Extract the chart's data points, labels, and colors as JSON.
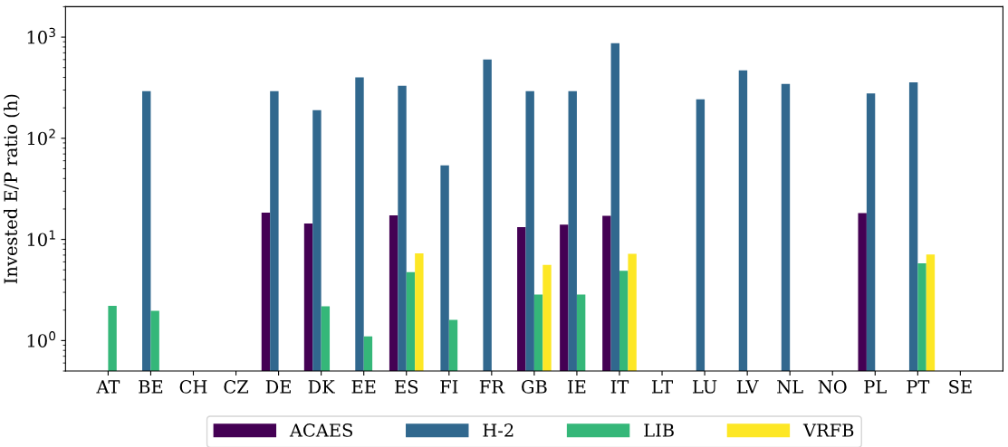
{
  "chart_data": {
    "type": "bar",
    "ylabel": "Invested E/P ratio (h)",
    "log": true,
    "categories": [
      "AT",
      "BE",
      "CH",
      "CZ",
      "DE",
      "DK",
      "EE",
      "ES",
      "FI",
      "FR",
      "GB",
      "IE",
      "IT",
      "LT",
      "LU",
      "LV",
      "NL",
      "NO",
      "PL",
      "PT",
      "SE"
    ],
    "series": [
      {
        "name": "ACAES",
        "color": "#440154",
        "values": [
          null,
          null,
          null,
          null,
          18.4,
          14.4,
          null,
          17.3,
          null,
          null,
          13.2,
          14,
          17.1,
          null,
          null,
          null,
          null,
          null,
          18.2,
          null,
          null
        ]
      },
      {
        "name": "H-2",
        "color": "#31688e",
        "values": [
          null,
          293,
          null,
          null,
          293,
          190,
          400,
          330,
          54,
          600,
          293,
          293,
          870,
          null,
          243,
          470,
          345,
          null,
          278,
          357,
          null
        ]
      },
      {
        "name": "LIB",
        "color": "#35b779",
        "values": [
          2.2,
          1.97,
          null,
          null,
          null,
          2.18,
          1.1,
          4.75,
          1.6,
          null,
          2.85,
          2.85,
          4.9,
          null,
          null,
          null,
          null,
          null,
          null,
          5.8,
          null
        ]
      },
      {
        "name": "VRFB",
        "color": "#fde725",
        "values": [
          null,
          null,
          null,
          null,
          null,
          null,
          null,
          7.3,
          null,
          null,
          5.6,
          null,
          7.2,
          null,
          null,
          null,
          null,
          null,
          null,
          7.1,
          null
        ]
      }
    ],
    "ylim": [
      0.5,
      2000
    ],
    "yticks": [
      {
        "value": 1,
        "label": "10$^{0}$"
      },
      {
        "value": 10,
        "label": "10$^{1}$"
      },
      {
        "value": 100,
        "label": "10$^{2}$"
      },
      {
        "value": 1000,
        "label": "10$^{3}$"
      }
    ],
    "grid": false,
    "legend": "bottom"
  }
}
